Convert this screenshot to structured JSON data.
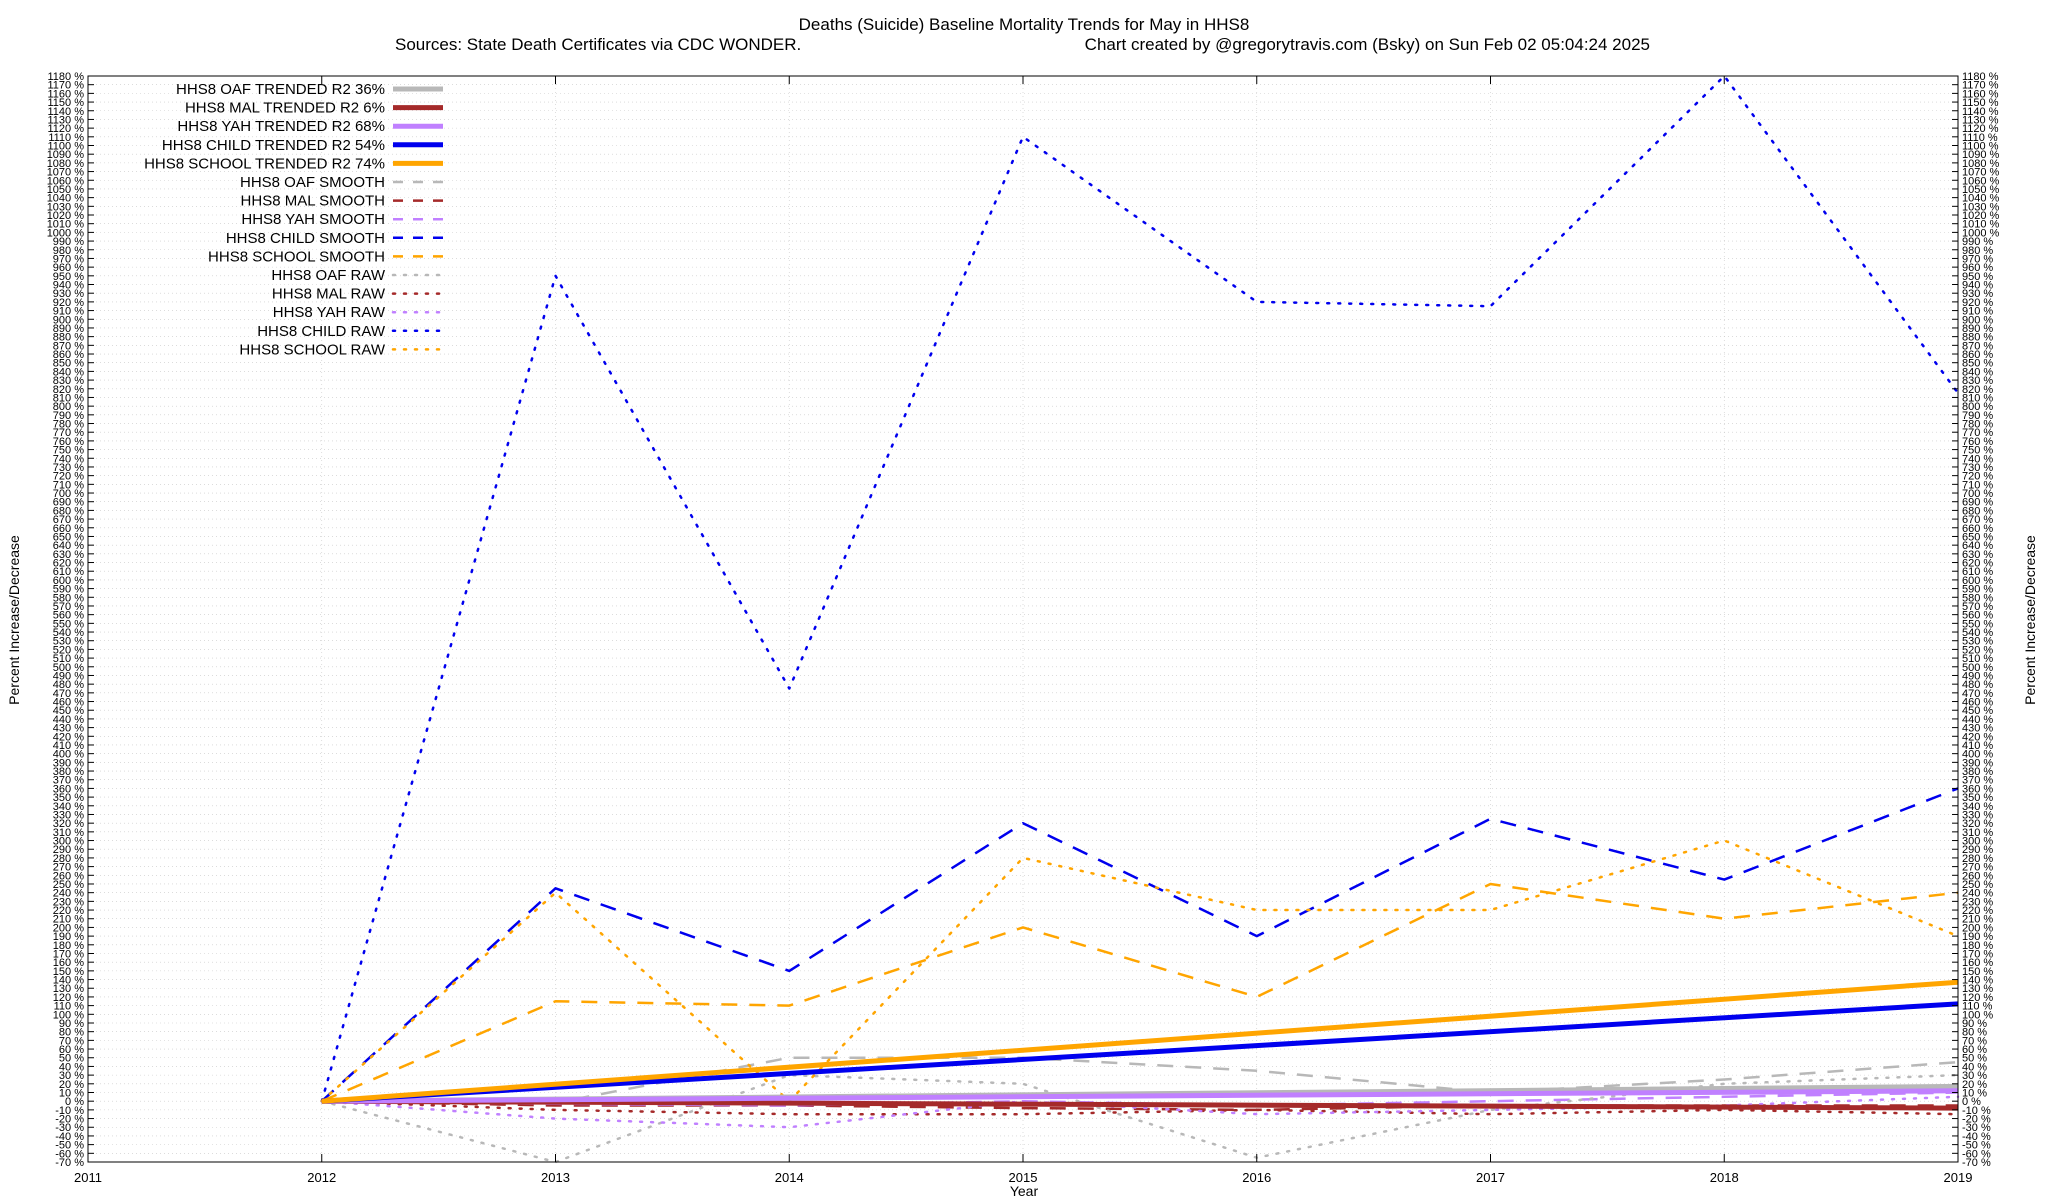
{
  "chart_data": {
    "type": "line",
    "title": "Deaths (Suicide)  Baseline Mortality Trends for May in HHS8",
    "subtitle_left": "Sources: State Death Certificates via CDC WONDER.",
    "subtitle_right": "Chart created by @gregorytravis.com (Bsky) on Sun Feb 02 05:04:24 2025",
    "xlabel": "Year",
    "ylabel_left": "Percent Increase/Decrease",
    "ylabel_right": "Percent Increase/Decrease",
    "xlim": [
      2011,
      2019
    ],
    "ylim": [
      -70,
      1180
    ],
    "x_ticks": [
      "2011",
      "2012",
      "2013",
      "2014",
      "2015",
      "2016",
      "2017",
      "2018",
      "2019"
    ],
    "y_tick_step": 10,
    "y_tick_suffix": " %",
    "grid": true,
    "legend_position": "top-left",
    "series": [
      {
        "name": "HHS8 OAF TRENDED R2  36%",
        "color": "#b8b8b8",
        "style": "solid",
        "width": 5,
        "x": [
          2012,
          2019
        ],
        "values": [
          0,
          17
        ]
      },
      {
        "name": "HHS8 MAL TRENDED R2   6%",
        "color": "#a52a2a",
        "style": "solid",
        "width": 5,
        "x": [
          2012,
          2019
        ],
        "values": [
          0,
          -8
        ]
      },
      {
        "name": "HHS8 YAH TRENDED R2  68%",
        "color": "#c080ff",
        "style": "solid",
        "width": 5,
        "x": [
          2012,
          2019
        ],
        "values": [
          0,
          12
        ]
      },
      {
        "name": "HHS8 CHILD TRENDED R2  54%",
        "color": "#0000ee",
        "style": "solid",
        "width": 5,
        "x": [
          2012,
          2019
        ],
        "values": [
          0,
          112
        ]
      },
      {
        "name": "HHS8 SCHOOL TRENDED R2  74%",
        "color": "#ffa500",
        "style": "solid",
        "width": 5,
        "x": [
          2012,
          2019
        ],
        "values": [
          0,
          137
        ]
      },
      {
        "name": "HHS8 OAF SMOOTH",
        "color": "#b8b8b8",
        "style": "dashed",
        "width": 2.5,
        "x": [
          2012,
          2013,
          2014,
          2015,
          2016,
          2017,
          2018,
          2019
        ],
        "values": [
          0,
          -2,
          50,
          50,
          35,
          10,
          25,
          45
        ]
      },
      {
        "name": "HHS8 MAL SMOOTH",
        "color": "#a52a2a",
        "style": "dashed",
        "width": 2.5,
        "x": [
          2012,
          2013,
          2014,
          2015,
          2016,
          2017,
          2018,
          2019
        ],
        "values": [
          0,
          -5,
          -5,
          -8,
          -10,
          -5,
          -5,
          -5
        ]
      },
      {
        "name": "HHS8 YAH SMOOTH",
        "color": "#c080ff",
        "style": "dashed",
        "width": 2.5,
        "x": [
          2012,
          2013,
          2014,
          2015,
          2016,
          2017,
          2018,
          2019
        ],
        "values": [
          0,
          -3,
          -5,
          0,
          -5,
          0,
          5,
          10
        ]
      },
      {
        "name": "HHS8 CHILD SMOOTH",
        "color": "#0000ee",
        "style": "dashed",
        "width": 2.5,
        "x": [
          2012,
          2013,
          2014,
          2015,
          2016,
          2017,
          2018,
          2019
        ],
        "values": [
          0,
          245,
          150,
          320,
          190,
          325,
          255,
          360
        ]
      },
      {
        "name": "HHS8 SCHOOL SMOOTH",
        "color": "#ffa500",
        "style": "dashed",
        "width": 2.5,
        "x": [
          2012,
          2013,
          2014,
          2015,
          2016,
          2017,
          2018,
          2019
        ],
        "values": [
          0,
          115,
          110,
          200,
          120,
          250,
          210,
          240
        ]
      },
      {
        "name": "HHS8 OAF RAW",
        "color": "#b8b8b8",
        "style": "dotted",
        "width": 2.5,
        "x": [
          2012,
          2013,
          2014,
          2015,
          2016,
          2017,
          2018,
          2019
        ],
        "values": [
          0,
          -70,
          30,
          20,
          -65,
          -10,
          20,
          30
        ]
      },
      {
        "name": "HHS8 MAL RAW",
        "color": "#a52a2a",
        "style": "dotted",
        "width": 2.5,
        "x": [
          2012,
          2013,
          2014,
          2015,
          2016,
          2017,
          2018,
          2019
        ],
        "values": [
          0,
          -10,
          -15,
          -15,
          -10,
          -15,
          -10,
          -15
        ]
      },
      {
        "name": "HHS8 YAH RAW",
        "color": "#c080ff",
        "style": "dotted",
        "width": 2.5,
        "x": [
          2012,
          2013,
          2014,
          2015,
          2016,
          2017,
          2018,
          2019
        ],
        "values": [
          0,
          -20,
          -30,
          0,
          -15,
          -10,
          -5,
          5
        ]
      },
      {
        "name": "HHS8 CHILD RAW",
        "color": "#0000ee",
        "style": "dotted",
        "width": 2.5,
        "x": [
          2012,
          2013,
          2014,
          2015,
          2016,
          2017,
          2018,
          2019
        ],
        "values": [
          0,
          950,
          475,
          1110,
          920,
          915,
          1180,
          815
        ]
      },
      {
        "name": "HHS8 SCHOOL RAW",
        "color": "#ffa500",
        "style": "dotted",
        "width": 2.5,
        "x": [
          2012,
          2013,
          2014,
          2015,
          2016,
          2017,
          2018,
          2019
        ],
        "values": [
          0,
          240,
          0,
          280,
          220,
          220,
          300,
          190
        ]
      }
    ]
  }
}
